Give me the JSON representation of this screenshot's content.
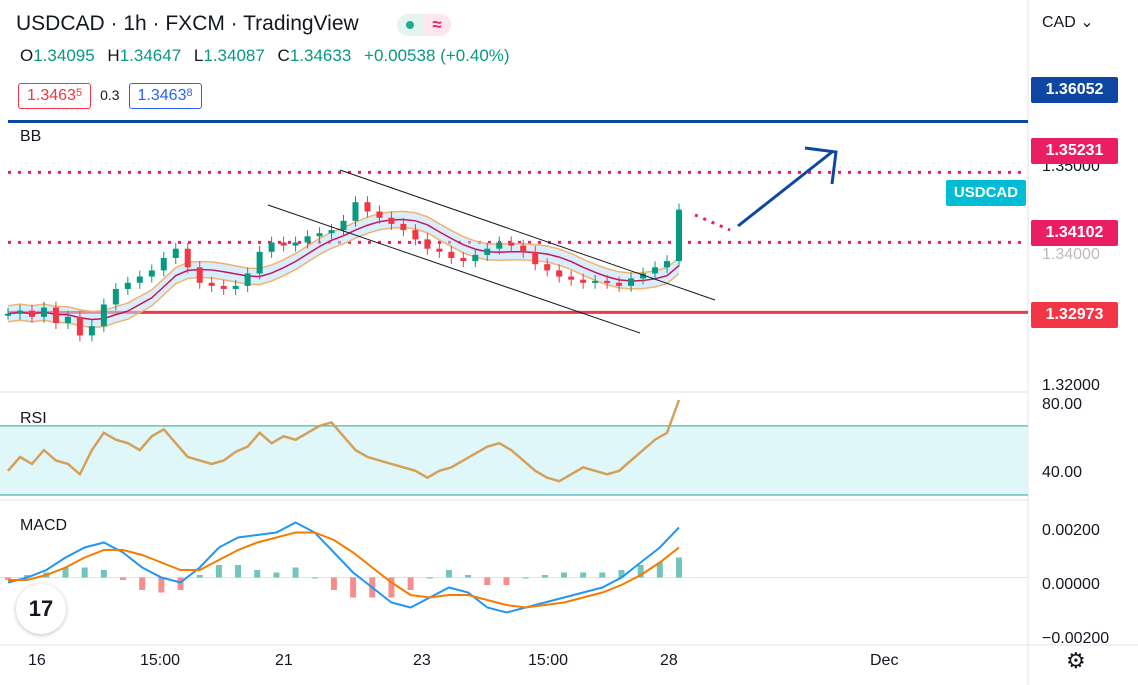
{
  "header": {
    "title": "USDCAD · 1h · FXCM · TradingView",
    "ohlc": {
      "o_label": "O",
      "o": "1.34095",
      "h_label": "H",
      "h": "1.34647",
      "l_label": "L",
      "l": "1.34087",
      "c_label": "C",
      "c": "1.34633",
      "change": "+0.00538 (+0.40%)"
    },
    "sell_price_main": "1.3463",
    "sell_price_sup": "5",
    "spread": "0.3",
    "buy_price_main": "1.3463",
    "buy_price_sup": "8",
    "wave_icon": "≈"
  },
  "currency": "CAD ⌄",
  "panes": {
    "bb": "BB",
    "rsi": "RSI",
    "macd": "MACD"
  },
  "price_axis": [
    "1.35000",
    "1.34000",
    "1.32000"
  ],
  "rsi_axis": [
    "80.00",
    "40.00"
  ],
  "macd_axis": [
    "0.00200",
    "0.00000",
    "−0.00200"
  ],
  "price_tags": [
    {
      "label": "1.36052",
      "color": "#0d47a1"
    },
    {
      "label": "1.35231",
      "color": "#e91e63"
    },
    {
      "label": "1.34102",
      "color": "#e91e63"
    },
    {
      "label": "1.32973",
      "color": "#f23645"
    }
  ],
  "symbol_tag": "USDCAD",
  "time_axis": [
    "16",
    "15:00",
    "21",
    "23",
    "15:00",
    "28",
    "Dec"
  ],
  "icons": {
    "logo": "tradingview-logo-icon",
    "settings": "gear-icon"
  },
  "chart_data": {
    "type": "line",
    "price_range": [
      1.318,
      1.364
    ],
    "levels": [
      {
        "value": 1.36052,
        "style": "solid",
        "color": "#0d47a1"
      },
      {
        "value": 1.35231,
        "style": "dotted",
        "color": "#e91e63"
      },
      {
        "value": 1.34102,
        "style": "dotted",
        "color": "#e91e63"
      },
      {
        "value": 1.32973,
        "style": "solid",
        "color": "#f23645"
      }
    ],
    "close_series": [
      1.3295,
      1.33,
      1.329,
      1.3305,
      1.328,
      1.329,
      1.326,
      1.3275,
      1.331,
      1.3335,
      1.3345,
      1.3355,
      1.3365,
      1.3385,
      1.34,
      1.337,
      1.3345,
      1.334,
      1.3335,
      1.334,
      1.336,
      1.3395,
      1.341,
      1.3405,
      1.341,
      1.342,
      1.3425,
      1.343,
      1.3445,
      1.3475,
      1.346,
      1.345,
      1.344,
      1.343,
      1.3415,
      1.34,
      1.3395,
      1.3385,
      1.338,
      1.339,
      1.34,
      1.341,
      1.3405,
      1.3395,
      1.3375,
      1.3365,
      1.3355,
      1.335,
      1.3345,
      1.3348,
      1.3345,
      1.334,
      1.3352,
      1.336,
      1.337,
      1.338,
      1.3463
    ],
    "rsi_series": [
      44,
      52,
      48,
      56,
      50,
      48,
      42,
      56,
      66,
      62,
      60,
      56,
      64,
      68,
      60,
      52,
      50,
      48,
      50,
      55,
      58,
      66,
      60,
      64,
      62,
      66,
      70,
      72,
      64,
      56,
      52,
      50,
      48,
      46,
      44,
      40,
      44,
      46,
      50,
      54,
      58,
      60,
      56,
      50,
      44,
      40,
      38,
      42,
      46,
      44,
      42,
      44,
      50,
      56,
      62,
      66,
      85
    ],
    "macd_series": [
      -0.0002,
      0.0,
      0.0003,
      0.0008,
      0.0012,
      0.0014,
      0.001,
      0.0004,
      0.0,
      -0.0002,
      0.0004,
      0.0012,
      0.0016,
      0.0017,
      0.0018,
      0.0022,
      0.0018,
      0.001,
      0.0002,
      -0.0004,
      -0.001,
      -0.0012,
      -0.0008,
      -0.0004,
      -0.0006,
      -0.0012,
      -0.0014,
      -0.0012,
      -0.001,
      -0.0008,
      -0.0006,
      -0.0004,
      0.0,
      0.0006,
      0.0012,
      0.002
    ],
    "signal_series": [
      -0.0001,
      -0.0001,
      0.0001,
      0.0004,
      0.0008,
      0.0011,
      0.0011,
      0.0009,
      0.0006,
      0.0003,
      0.0003,
      0.0007,
      0.0011,
      0.0014,
      0.0016,
      0.0018,
      0.0018,
      0.0015,
      0.001,
      0.0004,
      -0.0002,
      -0.0007,
      -0.0008,
      -0.0007,
      -0.0007,
      -0.0009,
      -0.0011,
      -0.0012,
      -0.0011,
      -0.001,
      -0.0008,
      -0.0006,
      -0.0003,
      0.0001,
      0.0006,
      0.0012
    ]
  }
}
